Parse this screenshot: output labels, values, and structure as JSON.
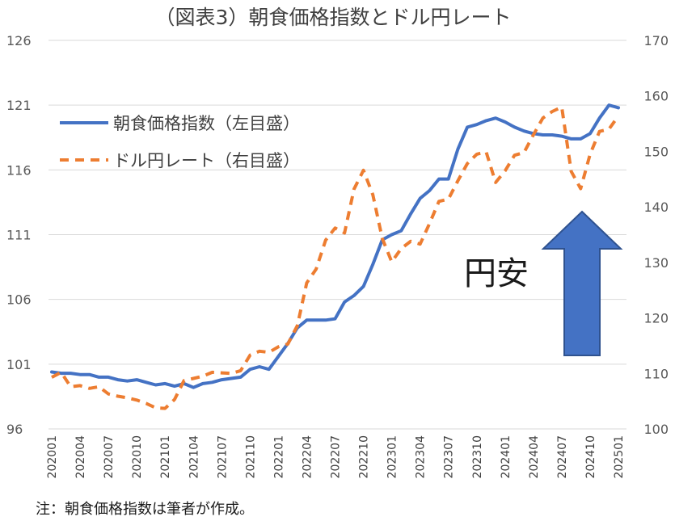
{
  "chart_data": {
    "type": "line",
    "title": "（図表3）朝食価格指数とドル円レート",
    "note": "注：朝食価格指数は筆者が作成。",
    "annotation": "円安",
    "ylim_left": [
      96,
      126
    ],
    "yticks_left": [
      "96",
      "101",
      "106",
      "111",
      "116",
      "121",
      "126"
    ],
    "ylim_right": [
      100,
      170
    ],
    "yticks_right": [
      "100",
      "110",
      "120",
      "130",
      "140",
      "150",
      "160",
      "170"
    ],
    "x": [
      "202001",
      "202002",
      "202003",
      "202004",
      "202005",
      "202006",
      "202007",
      "202008",
      "202009",
      "202010",
      "202011",
      "202012",
      "202101",
      "202102",
      "202103",
      "202104",
      "202105",
      "202106",
      "202107",
      "202108",
      "202109",
      "202110",
      "202111",
      "202112",
      "202201",
      "202202",
      "202203",
      "202204",
      "202205",
      "202206",
      "202207",
      "202208",
      "202209",
      "202210",
      "202211",
      "202212",
      "202301",
      "202302",
      "202303",
      "202304",
      "202305",
      "202306",
      "202307",
      "202308",
      "202309",
      "202310",
      "202311",
      "202312",
      "202401",
      "202402",
      "202403",
      "202404",
      "202405",
      "202406",
      "202407",
      "202408",
      "202409",
      "202410",
      "202411",
      "202412",
      "202501"
    ],
    "xtick_labels": [
      "202001",
      "202004",
      "202007",
      "202010",
      "202101",
      "202104",
      "202107",
      "202110",
      "202201",
      "202204",
      "202207",
      "202210",
      "202301",
      "202304",
      "202307",
      "202310",
      "202401",
      "202404",
      "202407",
      "202410",
      "202501"
    ],
    "grid": true,
    "legend_position": "top-left",
    "series": [
      {
        "name": "朝食価格指数（左目盛）",
        "axis": "left",
        "style": "solid",
        "color": "#4472C4",
        "values": [
          100.4,
          100.3,
          100.3,
          100.2,
          100.2,
          100.0,
          100.0,
          99.8,
          99.7,
          99.8,
          99.6,
          99.4,
          99.5,
          99.3,
          99.5,
          99.2,
          99.5,
          99.6,
          99.8,
          99.9,
          100.0,
          100.6,
          100.8,
          100.6,
          101.6,
          102.6,
          103.8,
          104.4,
          104.4,
          104.4,
          104.5,
          105.8,
          106.3,
          107.0,
          108.7,
          110.6,
          111.0,
          111.3,
          112.6,
          113.8,
          114.4,
          115.3,
          115.3,
          117.6,
          119.3,
          119.5,
          119.8,
          120.0,
          119.7,
          119.3,
          119.0,
          118.8,
          118.7,
          118.7,
          118.6,
          118.4,
          118.4,
          118.8,
          120.0,
          121.0,
          120.8
        ]
      },
      {
        "name": "ドル円レート（右目盛）",
        "axis": "right",
        "style": "dashed",
        "color": "#ED7D31",
        "values": [
          109.3,
          110.2,
          107.6,
          107.8,
          107.3,
          107.6,
          106.3,
          105.9,
          105.6,
          105.2,
          104.6,
          103.8,
          103.7,
          105.3,
          108.7,
          109.1,
          109.5,
          110.2,
          110.1,
          110.0,
          110.5,
          113.3,
          114.0,
          113.8,
          114.8,
          115.3,
          118.6,
          126.3,
          128.8,
          134.0,
          136.2,
          135.3,
          143.2,
          146.6,
          142.2,
          134.3,
          130.1,
          132.5,
          133.8,
          133.3,
          137.0,
          141.0,
          141.4,
          144.7,
          147.8,
          149.5,
          149.9,
          144.4,
          146.5,
          149.3,
          149.8,
          153.0,
          156.0,
          157.2,
          158.0,
          146.4,
          143.3,
          149.5,
          153.6,
          154.0,
          156.4
        ]
      }
    ]
  }
}
